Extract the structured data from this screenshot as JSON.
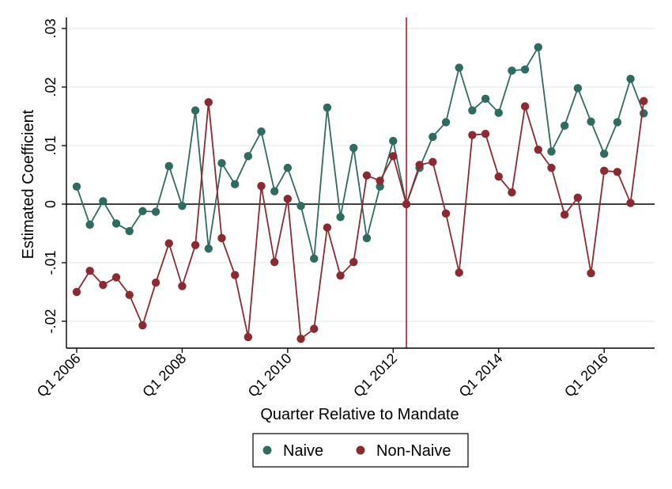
{
  "chart_data": {
    "type": "line",
    "title": "",
    "xlabel": "Quarter Relative to Mandate",
    "ylabel": "Estimated Coefficient",
    "ylim": [
      -0.025,
      0.03
    ],
    "yticks": [
      {
        "value": 0.03,
        "label": ".03"
      },
      {
        "value": 0.02,
        "label": ".02"
      },
      {
        "value": 0.01,
        "label": ".01"
      },
      {
        "value": 0,
        "label": "0"
      },
      {
        "value": -0.01,
        "label": "-.01"
      },
      {
        "value": -0.02,
        "label": "-.02"
      }
    ],
    "xticks": [
      {
        "index": 0,
        "label": "Q1 2006"
      },
      {
        "index": 8,
        "label": "Q1 2008"
      },
      {
        "index": 16,
        "label": "Q1 2010"
      },
      {
        "index": 24,
        "label": "Q1 2012"
      },
      {
        "index": 32,
        "label": "Q1 2014"
      },
      {
        "index": 40,
        "label": "Q1 2016"
      }
    ],
    "grid": true,
    "mandate_index": 25,
    "legend_position": "bottom",
    "series": [
      {
        "name": "Naive",
        "color": "#2f6b60",
        "values": [
          0.003,
          -0.0035,
          0.0005,
          -0.0033,
          -0.0046,
          -0.0012,
          -0.0013,
          0.0065,
          -0.0003,
          0.016,
          -0.0076,
          0.007,
          0.0034,
          0.0082,
          0.0124,
          0.0022,
          0.0062,
          -0.0003,
          -0.0093,
          0.0165,
          -0.0022,
          0.0096,
          -0.0058,
          0.003,
          0.0108,
          0.0,
          0.0062,
          0.0115,
          0.014,
          0.0233,
          0.016,
          0.018,
          0.0156,
          0.0228,
          0.023,
          0.0268,
          0.009,
          0.0134,
          0.0198,
          0.0141,
          0.0086,
          0.014,
          0.0214,
          0.0155
        ]
      },
      {
        "name": "Non-Naive",
        "color": "#8b2a32",
        "values": [
          -0.015,
          -0.0114,
          -0.0138,
          -0.0125,
          -0.0155,
          -0.0207,
          -0.0134,
          -0.0067,
          -0.014,
          -0.007,
          0.0174,
          -0.0058,
          -0.0121,
          -0.0227,
          0.0031,
          -0.0099,
          0.0009,
          -0.023,
          -0.0213,
          -0.004,
          -0.0122,
          -0.0099,
          0.0049,
          0.004,
          0.0082,
          0.0,
          0.0067,
          0.0072,
          -0.0016,
          -0.0117,
          0.0118,
          0.012,
          0.0047,
          0.002,
          0.0167,
          0.0093,
          0.0062,
          -0.0018,
          0.0011,
          -0.0118,
          0.0057,
          0.0055,
          0.0002,
          0.0176
        ]
      }
    ]
  }
}
